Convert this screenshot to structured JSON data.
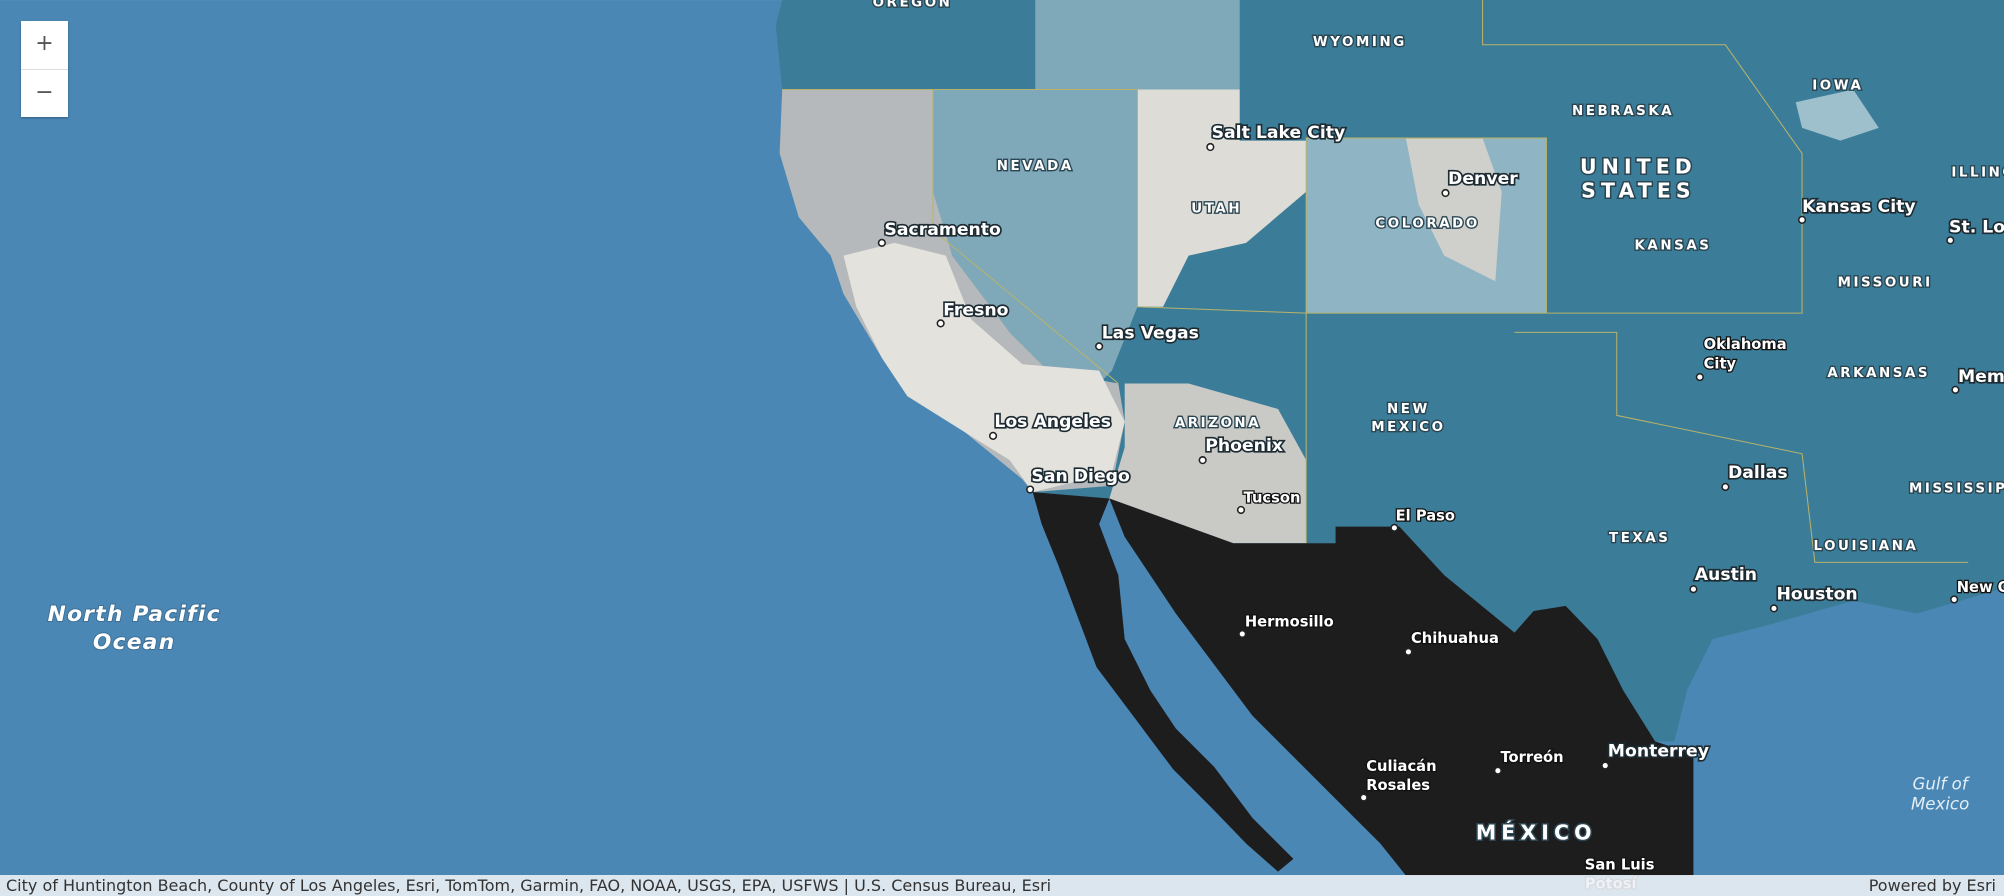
{
  "zoom_controls": {
    "zoom_in": "+",
    "zoom_out": "−"
  },
  "labels": [
    [
      "OREGON"
    ],
    [
      "WYOMING"
    ],
    [
      "NEBRASKA"
    ],
    [
      "IOWA"
    ],
    [
      "ILLINOIS"
    ],
    [
      "NEVADA"
    ],
    [
      "UTAH"
    ],
    [
      "COLORADO"
    ],
    [
      "KANSAS"
    ],
    [
      "MISSOURI"
    ],
    [
      "ARKANSAS"
    ],
    [
      "ARIZONA"
    ],
    [
      "NEW",
      "MEXICO"
    ],
    [
      "TEXAS"
    ],
    [
      "LOUISIANA"
    ],
    [
      "MISSISSIPPI"
    ],
    [
      "UNITED",
      "STATES"
    ],
    [
      "MÉXICO"
    ],
    [
      "Salt Lake City"
    ],
    [
      "Denver"
    ],
    [
      "Kansas City"
    ],
    [
      "St. Louis"
    ],
    [
      "Sacramento"
    ],
    [
      "Fresno"
    ],
    [
      "Las Vegas"
    ],
    [
      "Oklahoma",
      "City"
    ],
    [
      "Memphis"
    ],
    [
      "Los Angeles"
    ],
    [
      "Phoenix"
    ],
    [
      "San Diego"
    ],
    [
      "Tucson"
    ],
    [
      "Dallas"
    ],
    [
      "El Paso"
    ],
    [
      "Austin"
    ],
    [
      "Houston"
    ],
    [
      "New Orleans"
    ],
    [
      "Hermosillo"
    ],
    [
      "Chihuahua"
    ],
    [
      "Culiacán",
      "Rosales"
    ],
    [
      "Torreón"
    ],
    [
      "Monterrey"
    ],
    [
      "San Luis",
      "Potosí"
    ],
    [
      "North Pacific",
      "Ocean"
    ],
    [
      "Gulf of",
      "Mexico"
    ]
  ],
  "attribution": "City of Huntington Beach, County of Los Angeles, Esri, TomTom, Garmin, FAO, NOAA, USGS, EPA, USFWS | U.S. Census Bureau, Esri",
  "powered_by": "Powered by Esri"
}
